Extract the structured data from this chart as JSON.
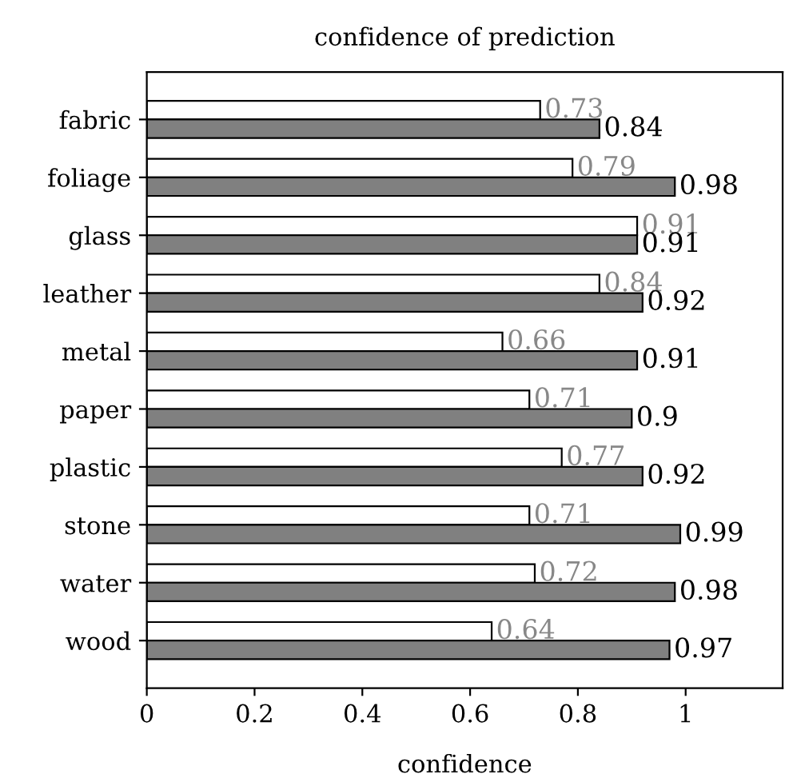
{
  "chart_data": {
    "type": "bar",
    "orientation": "horizontal",
    "title": "confidence of prediction",
    "xlabel": "confidence",
    "categories": [
      "fabric",
      "foliage",
      "glass",
      "leather",
      "metal",
      "paper",
      "plastic",
      "stone",
      "water",
      "wood"
    ],
    "series": [
      {
        "color": "#ffffff",
        "values": [
          0.73,
          0.79,
          0.91,
          0.84,
          0.66,
          0.71,
          0.77,
          0.71,
          0.72,
          0.64
        ]
      },
      {
        "color": "#808080",
        "values": [
          0.84,
          0.98,
          0.91,
          0.92,
          0.91,
          0.9,
          0.92,
          0.99,
          0.98,
          0.97
        ]
      }
    ],
    "xlim": [
      0,
      1.18
    ],
    "xticks": [
      0,
      0.2,
      0.4,
      0.6,
      0.8,
      1
    ],
    "data_labels": true,
    "grid": false,
    "legend": false
  }
}
